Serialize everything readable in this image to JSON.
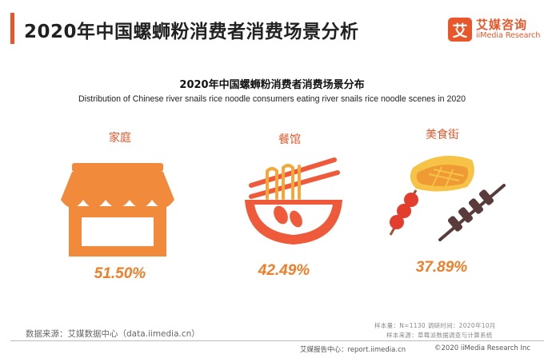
{
  "header": {
    "title": "2020年中国螺蛳粉消费者消费场景分析",
    "accent_color": "#e8562a"
  },
  "brand": {
    "logo_glyph": "艾",
    "name_cn": "艾媒咨询",
    "name_en": "iiMedia Research"
  },
  "chart_data": {
    "type": "bar",
    "title": "2020年中国螺蛳粉消费者消费场景分布",
    "subtitle": "Distribution of Chinese river snails rice noodle consumers eating river snails rice noodle scenes in 2020",
    "categories": [
      "家庭",
      "餐馆",
      "美食街"
    ],
    "values": [
      51.5,
      42.49,
      37.89
    ],
    "value_labels": [
      "51.50%",
      "42.49%",
      "37.89%"
    ],
    "category_icons": [
      "shop-awning-icon",
      "noodle-bowl-icon",
      "street-food-icon"
    ],
    "unit": "%",
    "colors": {
      "label": "#e8562a",
      "value": "#f07d28",
      "icon": "#f28a3c"
    }
  },
  "footer": {
    "data_source": "数据来源：艾媒数据中心（data.iimedia.cn）",
    "sample": "样本量：N=1130    调研时间：2020年10月",
    "sample_source": "样本来源：草莓派数据调查与计算系统",
    "report_center": "艾媒报告中心：report.iimedia.cn",
    "copyright": "©2020  iiMedia Research  Inc"
  }
}
